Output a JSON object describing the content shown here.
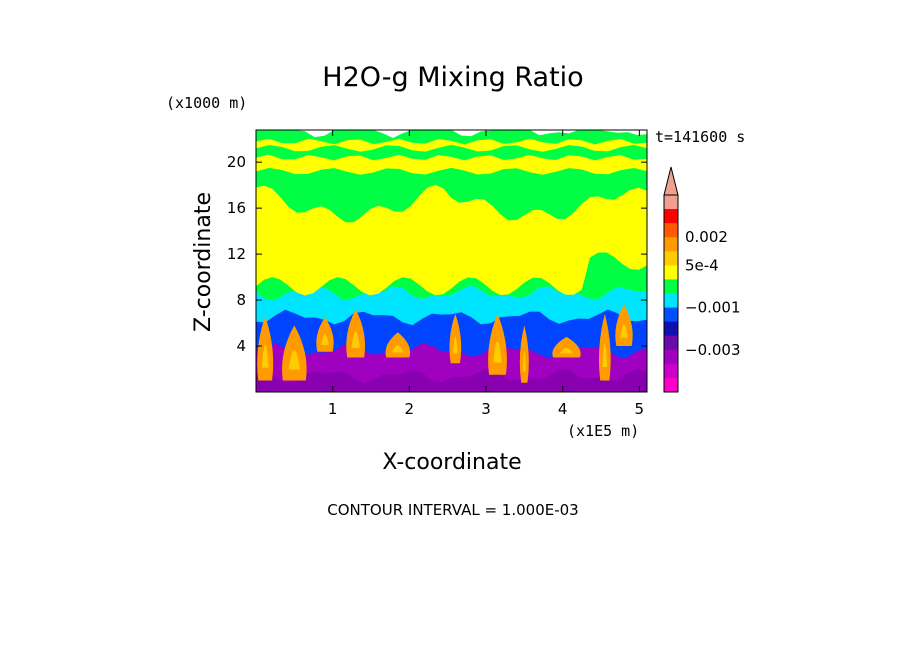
{
  "chart_data": {
    "type": "heatmap",
    "title": "H2O-g Mixing Ratio",
    "xlabel": "X-coordinate",
    "ylabel": "Z-coordinate",
    "x_scale_label": "(x1E5 m)",
    "y_scale_label": "(x1000 m)",
    "xlim": [
      0,
      5.1
    ],
    "ylim": [
      0,
      22.8
    ],
    "x_ticks": [
      {
        "value": 1,
        "label": "1"
      },
      {
        "value": 2,
        "label": "2"
      },
      {
        "value": 3,
        "label": "3"
      },
      {
        "value": 4,
        "label": "4"
      },
      {
        "value": 5,
        "label": "5"
      }
    ],
    "y_ticks": [
      {
        "value": 4,
        "label": "4"
      },
      {
        "value": 8,
        "label": "8"
      },
      {
        "value": 12,
        "label": "12"
      },
      {
        "value": 16,
        "label": "16"
      },
      {
        "value": 20,
        "label": "20"
      }
    ],
    "time_label": "t=141600 s",
    "contour_interval_label": "CONTOUR INTERVAL = 1.000E-03",
    "colorbar": {
      "levels_from_top": [
        "#f0a090",
        "#ff0000",
        "#ff5a00",
        "#ff9a00",
        "#ffcc00",
        "#ffff00",
        "#00ff44",
        "#00e5ff",
        "#0050ff",
        "#1010b0",
        "#6a0aa8",
        "#a000c0",
        "#cc00cc",
        "#ff00c8"
      ],
      "labels": [
        {
          "text": "0.002",
          "level_index": 2
        },
        {
          "text": "5e-4",
          "level_index": 4
        },
        {
          "text": "−0.001",
          "level_index": 7
        },
        {
          "text": "−0.003",
          "level_index": 10
        }
      ]
    },
    "layers_bottom_to_top": [
      {
        "z_top": 1.4,
        "color": "#8800b0"
      },
      {
        "z_top": 3.6,
        "color": "#a000c0"
      },
      {
        "z_top": 6.5,
        "color": "#0044ff"
      },
      {
        "z_top": 8.6,
        "color": "#00e5ff"
      },
      {
        "z_top": 14.8,
        "color": "#00ff44"
      },
      {
        "z_top": 22.8,
        "color": "#00ff44"
      }
    ],
    "yellow_region": {
      "color": "#ffff00",
      "z_bottom": 9.2,
      "z_top": 17.8
    },
    "upper_bands": [
      {
        "z_bottom": 19.2,
        "z_top": 20.4,
        "color": "#ffff00"
      },
      {
        "z_bottom": 21.2,
        "z_top": 21.8,
        "color": "#ffff00"
      }
    ],
    "plumes": [
      {
        "x": 0.12,
        "z_bottom": 1.0,
        "z_top": 6.6,
        "width": 0.18
      },
      {
        "x": 0.5,
        "z_bottom": 1.0,
        "z_top": 5.8,
        "width": 0.3
      },
      {
        "x": 0.9,
        "z_bottom": 3.5,
        "z_top": 6.5,
        "width": 0.2
      },
      {
        "x": 1.3,
        "z_bottom": 3.0,
        "z_top": 7.2,
        "width": 0.22
      },
      {
        "x": 1.85,
        "z_bottom": 3.0,
        "z_top": 5.2,
        "width": 0.3
      },
      {
        "x": 2.6,
        "z_bottom": 2.5,
        "z_top": 6.8,
        "width": 0.12
      },
      {
        "x": 3.15,
        "z_bottom": 1.5,
        "z_top": 6.8,
        "width": 0.22
      },
      {
        "x": 3.5,
        "z_bottom": 0.8,
        "z_top": 5.8,
        "width": 0.08
      },
      {
        "x": 4.05,
        "z_bottom": 3.0,
        "z_top": 4.8,
        "width": 0.35
      },
      {
        "x": 4.55,
        "z_bottom": 1.0,
        "z_top": 6.8,
        "width": 0.12
      },
      {
        "x": 4.8,
        "z_bottom": 4.0,
        "z_top": 7.6,
        "width": 0.2
      }
    ]
  }
}
